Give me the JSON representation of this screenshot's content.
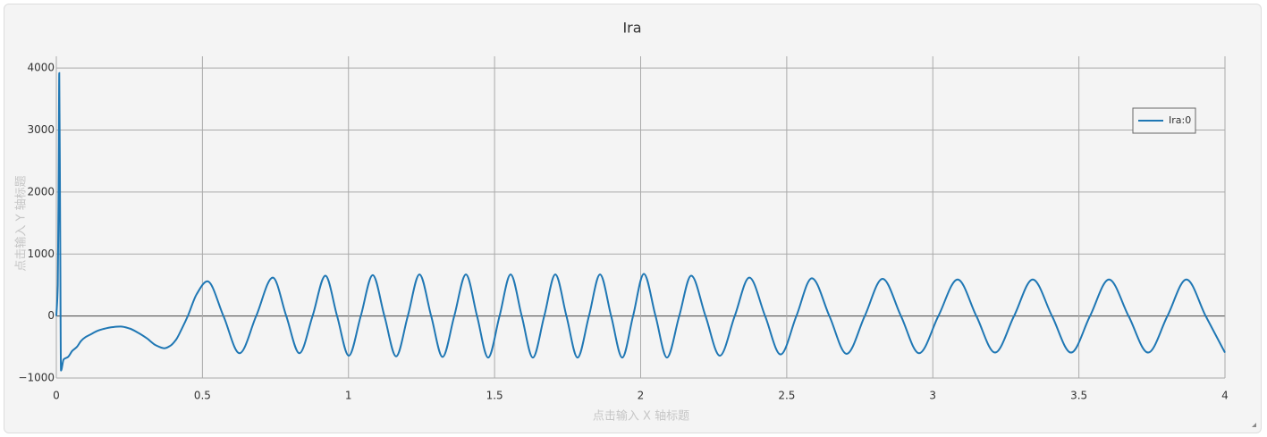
{
  "chart_data": {
    "type": "line",
    "title": "Ira",
    "x_label": "点击输入 X 轴标题",
    "y_label": "点击输入 Y 轴标题",
    "xlim": [
      0,
      4
    ],
    "ylim": [
      -1000,
      4190
    ],
    "xticks": [
      0,
      0.5,
      1,
      1.5,
      2,
      2.5,
      3,
      3.5,
      4
    ],
    "yticks": [
      {
        "value": -1000,
        "label": "−1000"
      },
      0,
      1000,
      2000,
      3000,
      4000
    ],
    "grid": true,
    "legend": "upper right",
    "series": [
      {
        "name": "Ira:0",
        "color": "#1f77b4",
        "x": [
          0,
          0.005,
          0.008,
          0.01,
          0.013,
          0.016,
          0.025,
          0.04,
          0.055,
          0.07,
          0.085,
          0.1,
          0.12,
          0.14,
          0.16,
          0.19,
          0.22,
          0.25,
          0.28,
          0.31,
          0.34,
          0.37,
          0.39,
          0.41,
          0.43,
          0.45,
          0.48,
          0.517,
          0.572,
          0.627,
          0.684,
          0.741,
          0.787,
          0.832,
          0.877,
          0.921,
          0.961,
          1.001,
          1.042,
          1.083,
          1.123,
          1.163,
          1.203,
          1.243,
          1.283,
          1.322,
          1.362,
          1.402,
          1.44,
          1.478,
          1.517,
          1.555,
          1.593,
          1.631,
          1.67,
          1.708,
          1.746,
          1.784,
          1.823,
          1.861,
          1.899,
          1.937,
          1.974,
          2.011,
          2.051,
          2.09,
          2.132,
          2.173,
          2.222,
          2.271,
          2.322,
          2.372,
          2.426,
          2.479,
          2.533,
          2.586,
          2.646,
          2.705,
          2.767,
          2.828,
          2.891,
          2.953,
          3.019,
          3.085,
          3.149,
          3.213,
          3.278,
          3.342,
          3.408,
          3.473,
          3.538,
          3.603,
          3.67,
          3.737,
          3.803,
          3.868,
          3.934,
          4.0
        ],
        "values": [
          0,
          500,
          2300,
          3920,
          1500,
          -880,
          -700,
          -660,
          -560,
          -500,
          -400,
          -340,
          -290,
          -240,
          -210,
          -180,
          -170,
          -200,
          -270,
          -360,
          -470,
          -520,
          -480,
          -380,
          -200,
          0,
          350,
          560,
          0,
          -600,
          0,
          620,
          0,
          -600,
          0,
          650,
          0,
          -640,
          0,
          660,
          0,
          -650,
          0,
          670,
          0,
          -660,
          0,
          670,
          0,
          -670,
          0,
          670,
          0,
          -670,
          0,
          670,
          0,
          -670,
          0,
          670,
          0,
          -670,
          0,
          680,
          0,
          -670,
          0,
          650,
          0,
          -640,
          0,
          620,
          0,
          -620,
          0,
          610,
          0,
          -610,
          0,
          600,
          0,
          -600,
          0,
          590,
          0,
          -590,
          0,
          590,
          0,
          -590,
          0,
          590,
          0,
          -590,
          0,
          590,
          0,
          -590
        ]
      }
    ]
  }
}
